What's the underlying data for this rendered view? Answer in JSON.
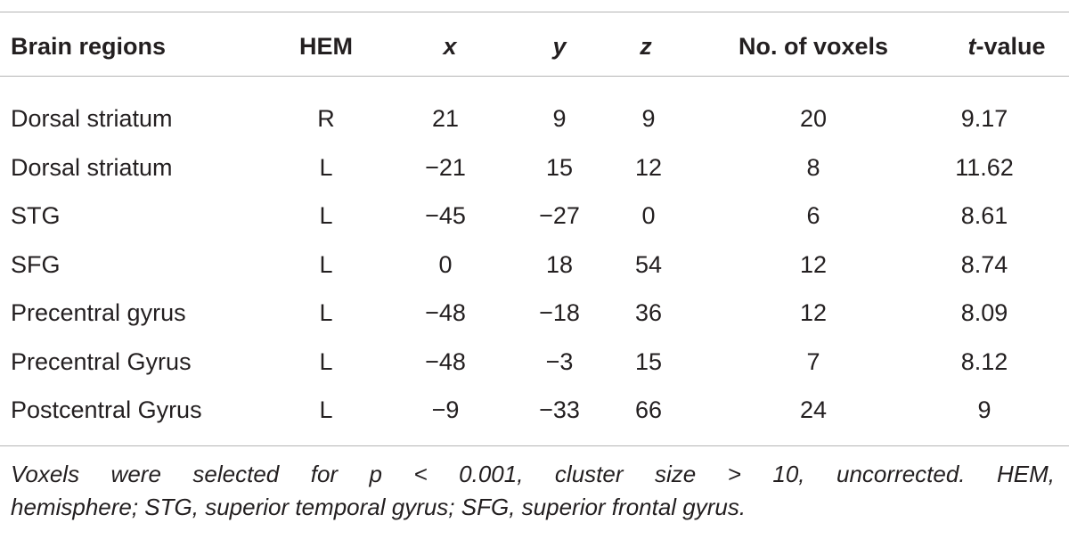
{
  "table": {
    "columns": [
      "Brain regions",
      "HEM",
      "x",
      "y",
      "z",
      "No. of voxels",
      {
        "italic": "t",
        "rest": "-value"
      }
    ],
    "rows": [
      [
        "Dorsal striatum",
        "R",
        "21",
        "9",
        "9",
        "20",
        "9.17"
      ],
      [
        "Dorsal striatum",
        "L",
        "−21",
        "15",
        "12",
        "8",
        "11.62"
      ],
      [
        "STG",
        "L",
        "−45",
        "−27",
        "0",
        "6",
        "8.61"
      ],
      [
        "SFG",
        "L",
        "0",
        "18",
        "54",
        "12",
        "8.74"
      ],
      [
        "Precentral gyrus",
        "L",
        "−48",
        "−18",
        "36",
        "12",
        "8.09"
      ],
      [
        "Precentral Gyrus",
        "L",
        "−48",
        "−3",
        "15",
        "7",
        "8.12"
      ],
      [
        "Postcentral Gyrus",
        "L",
        "−9",
        "−33",
        "66",
        "24",
        "9"
      ]
    ],
    "footnote": [
      "Voxels were selected for p < 0.001, cluster size > 10, uncorrected. HEM,",
      "hemisphere; STG, superior temporal gyrus; SFG, superior frontal gyrus."
    ]
  }
}
